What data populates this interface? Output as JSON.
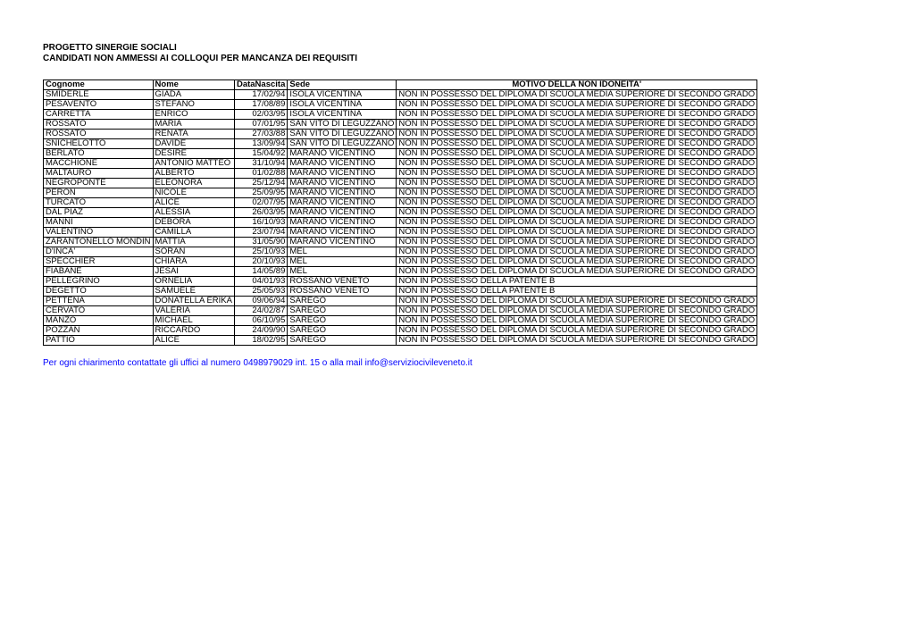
{
  "header": {
    "title": "PROGETTO SINERGIE SOCIALI",
    "subtitle": "CANDIDATI NON AMMESSI AI COLLOQUI PER MANCANZA DEI REQUISITI"
  },
  "table": {
    "columns": [
      "Cognome",
      "Nome",
      "DataNascita",
      "Sede",
      "MOTIVO DELLA NON IDONEITA'"
    ],
    "rows": [
      [
        "SMIDERLE",
        "GIADA",
        "17/02/94",
        "ISOLA VICENTINA",
        "NON IN POSSESSO DEL DIPLOMA DI SCUOLA MEDIA SUPERIORE DI SECONDO GRADO"
      ],
      [
        "PESAVENTO",
        "STEFANO",
        "17/08/89",
        "ISOLA VICENTINA",
        "NON IN POSSESSO DEL DIPLOMA DI SCUOLA MEDIA SUPERIORE DI SECONDO GRADO"
      ],
      [
        "CARRETTA",
        "ENRICO",
        "02/03/95",
        "ISOLA VICENTINA",
        "NON IN POSSESSO DEL DIPLOMA DI SCUOLA MEDIA SUPERIORE DI SECONDO GRADO"
      ],
      [
        "ROSSATO",
        "MARIA",
        "07/01/95",
        "SAN VITO DI LEGUZZANO",
        "NON IN POSSESSO DEL DIPLOMA DI SCUOLA MEDIA SUPERIORE DI SECONDO GRADO"
      ],
      [
        "ROSSATO",
        "RENATA",
        "27/03/88",
        "SAN VITO DI LEGUZZANO",
        "NON IN POSSESSO DEL DIPLOMA DI SCUOLA MEDIA SUPERIORE DI SECONDO GRADO"
      ],
      [
        "SNICHELOTTO",
        "DAVIDE",
        "13/09/94",
        "SAN VITO DI LEGUZZANO",
        "NON IN POSSESSO DEL DIPLOMA DI SCUOLA MEDIA SUPERIORE DI SECONDO GRADO"
      ],
      [
        "BERLATO",
        "DESIRE",
        "15/04/92",
        "MARANO VICENTINO",
        "NON IN POSSESSO DEL DIPLOMA DI SCUOLA MEDIA SUPERIORE DI SECONDO GRADO"
      ],
      [
        "MACCHIONE",
        "ANTONIO MATTEO",
        "31/10/94",
        "MARANO VICENTINO",
        "NON IN POSSESSO DEL DIPLOMA DI SCUOLA MEDIA SUPERIORE DI SECONDO GRADO"
      ],
      [
        "MALTAURO",
        "ALBERTO",
        "01/02/88",
        "MARANO VICENTINO",
        "NON IN POSSESSO DEL DIPLOMA DI SCUOLA MEDIA SUPERIORE DI SECONDO GRADO"
      ],
      [
        "NEGROPONTE",
        "ELEONORA",
        "25/12/94",
        "MARANO VICENTINO",
        "NON IN POSSESSO DEL DIPLOMA DI SCUOLA MEDIA SUPERIORE DI SECONDO GRADO"
      ],
      [
        "PERON",
        "NICOLE",
        "25/09/95",
        "MARANO VICENTINO",
        "NON IN POSSESSO DEL DIPLOMA DI SCUOLA MEDIA SUPERIORE DI SECONDO GRADO"
      ],
      [
        "TURCATO",
        "ALICE",
        "02/07/95",
        "MARANO VICENTINO",
        "NON IN POSSESSO DEL DIPLOMA DI SCUOLA MEDIA SUPERIORE DI SECONDO GRADO"
      ],
      [
        "DAL PIAZ",
        "ALESSIA",
        "26/03/95",
        "MARANO VICENTINO",
        "NON IN POSSESSO DEL DIPLOMA DI SCUOLA MEDIA SUPERIORE DI SECONDO GRADO"
      ],
      [
        "MANNI",
        "DEBORA",
        "16/10/93",
        "MARANO VICENTINO",
        "NON IN POSSESSO DEL DIPLOMA DI SCUOLA MEDIA SUPERIORE DI SECONDO GRADO"
      ],
      [
        "VALENTINO",
        "CAMILLA",
        "23/07/94",
        "MARANO VICENTINO",
        "NON IN POSSESSO DEL DIPLOMA DI SCUOLA MEDIA SUPERIORE DI SECONDO GRADO"
      ],
      [
        "ZARANTONELLO MONDIN",
        "MATTIA",
        "31/05/90",
        "MARANO VICENTINO",
        "NON IN POSSESSO DEL DIPLOMA DI SCUOLA MEDIA SUPERIORE DI SECONDO GRADO"
      ],
      [
        "D'INCA'",
        "SORAN",
        "25/10/93",
        "MEL",
        "NON IN POSSESSO DEL DIPLOMA DI SCUOLA MEDIA SUPERIORE DI SECONDO GRADO"
      ],
      [
        "SPECCHIER",
        "CHIARA",
        "20/10/93",
        "MEL",
        "NON IN POSSESSO DEL DIPLOMA DI SCUOLA MEDIA SUPERIORE DI SECONDO GRADO"
      ],
      [
        "FIABANE",
        "JESAI",
        "14/05/89",
        "MEL",
        "NON IN POSSESSO DEL DIPLOMA DI SCUOLA MEDIA SUPERIORE DI SECONDO GRADO"
      ],
      [
        "PELLEGRINO",
        "ORNELIA",
        "04/01/93",
        "ROSSANO VENETO",
        "NON IN POSSESSO DELLA PATENTE B"
      ],
      [
        "DEGETTO",
        "SAMUELE",
        "25/05/93",
        "ROSSANO VENETO",
        "NON IN POSSESSO DELLA PATENTE B"
      ],
      [
        "PETTENA",
        "DONATELLA ERIKA",
        "09/06/94",
        "SAREGO",
        "NON IN POSSESSO DEL DIPLOMA DI SCUOLA MEDIA SUPERIORE DI SECONDO GRADO"
      ],
      [
        "CERVATO",
        "VALERIA",
        "24/02/87",
        "SAREGO",
        "NON IN POSSESSO DEL DIPLOMA DI SCUOLA MEDIA SUPERIORE DI SECONDO GRADO"
      ],
      [
        "MANZO",
        "MICHAEL",
        "06/10/95",
        "SAREGO",
        "NON IN POSSESSO DEL DIPLOMA DI SCUOLA MEDIA SUPERIORE DI SECONDO GRADO"
      ],
      [
        "POZZAN",
        "RICCARDO",
        "24/09/90",
        "SAREGO",
        "NON IN POSSESSO DEL DIPLOMA DI SCUOLA MEDIA SUPERIORE DI SECONDO GRADO"
      ],
      [
        "PATTIO",
        "ALICE",
        "18/02/95",
        "SAREGO",
        "NON IN POSSESSO DEL DIPLOMA DI SCUOLA MEDIA SUPERIORE DI SECONDO GRADO"
      ]
    ]
  },
  "footer": {
    "note": "Per ogni chiarimento contattate gli uffici al numero 0498979029 int. 15 o alla mail info@serviziocivileveneto.it"
  }
}
